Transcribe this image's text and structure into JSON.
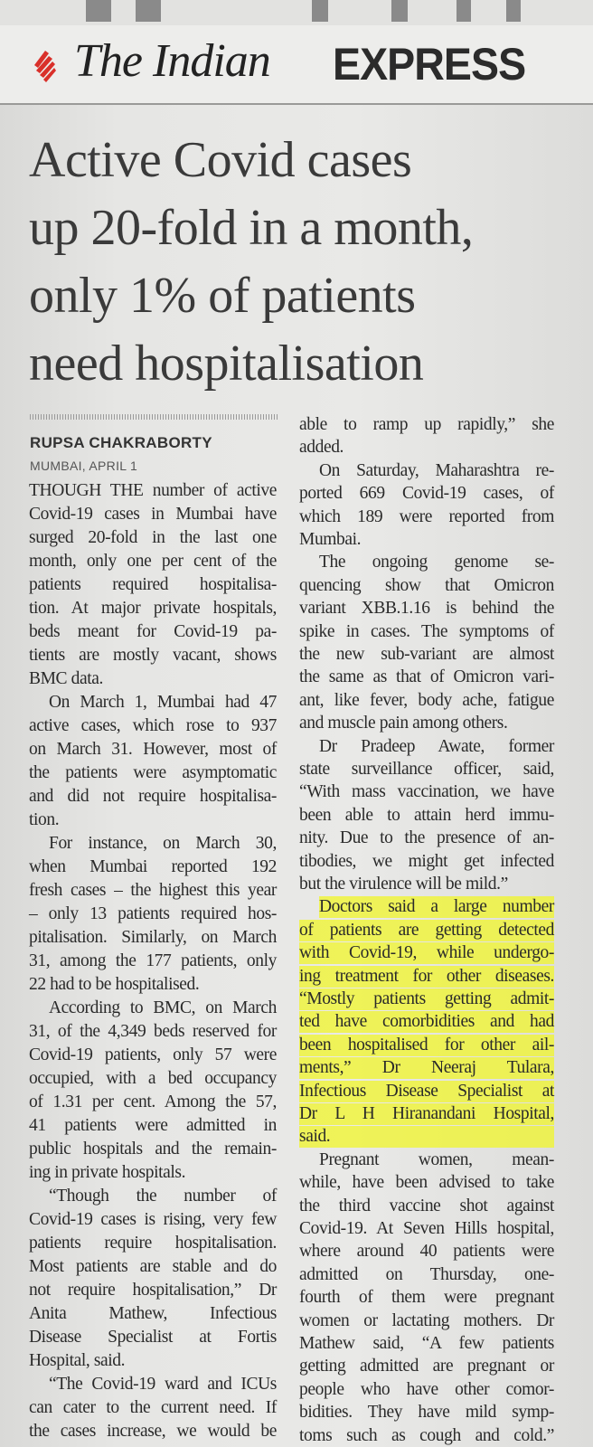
{
  "masthead": {
    "the_indian": "The Indian",
    "express": "EXPRESS",
    "brand_color": "#d9302a"
  },
  "headline": [
    "Active Covid cases",
    "up 20-fold in a month,",
    "only 1% of patients",
    "need hospitalisation"
  ],
  "byline": "RUPSA CHAKRABORTY",
  "dateline": "MUMBAI, APRIL 1",
  "highlight_color": "#f2f52a",
  "columns": [
    {
      "lines": [
        {
          "t": "THOUGH THE number of active"
        },
        {
          "t": "Covid-19 cases in Mumbai have"
        },
        {
          "t": "surged 20-fold in the last one"
        },
        {
          "t": "month, only one per cent of the"
        },
        {
          "t": "patients required hospitalisa-"
        },
        {
          "t": "tion. At major private hospitals,"
        },
        {
          "t": "beds meant for Covid-19 pa-"
        },
        {
          "t": "tients are mostly vacant, shows"
        },
        {
          "t": "BMC data.",
          "last": true
        },
        {
          "t": "On March 1, Mumbai had 47",
          "indent": true
        },
        {
          "t": "active cases, which rose to 937"
        },
        {
          "t": "on March 31. However, most of"
        },
        {
          "t": "the patients were asymptomatic"
        },
        {
          "t": "and did not require hospitalisa-"
        },
        {
          "t": "tion.",
          "last": true
        },
        {
          "t": "For instance, on March 30,",
          "indent": true
        },
        {
          "t": "when Mumbai reported 192"
        },
        {
          "t": "fresh cases – the highest this year"
        },
        {
          "t": "– only 13 patients required hos-"
        },
        {
          "t": "pitalisation. Similarly, on March"
        },
        {
          "t": "31, among the 177 patients, only"
        },
        {
          "t": "22 had to be hospitalised.",
          "last": true
        },
        {
          "t": "According to BMC, on March",
          "indent": true
        },
        {
          "t": "31, of the 4,349 beds reserved for"
        },
        {
          "t": "Covid-19 patients, only 57 were"
        },
        {
          "t": "occupied, with a bed occupancy"
        },
        {
          "t": "of 1.31 per cent. Among the 57,"
        },
        {
          "t": "41 patients were admitted in"
        },
        {
          "t": "public hospitals and the remain-"
        },
        {
          "t": "ing in private hospitals.",
          "last": true
        },
        {
          "t": "“Though the number of",
          "indent": true
        },
        {
          "t": "Covid-19 cases is rising, very few"
        },
        {
          "t": "patients require hospitalisation."
        },
        {
          "t": "Most patients are stable and do"
        },
        {
          "t": "not require hospitalisation,” Dr"
        },
        {
          "t": "Anita Mathew, Infectious"
        },
        {
          "t": "Disease Specialist at Fortis"
        },
        {
          "t": "Hospital, said.",
          "last": true
        },
        {
          "t": "“The Covid-19 ward and ICUs",
          "indent": true
        },
        {
          "t": "can cater to the current need. If"
        },
        {
          "t": "the cases increase, we would be"
        }
      ]
    },
    {
      "lines": [
        {
          "t": "able to ramp up rapidly,” she"
        },
        {
          "t": "added.",
          "last": true
        },
        {
          "t": "On Saturday, Maharashtra re-",
          "indent": true
        },
        {
          "t": "ported 669 Covid-19 cases, of"
        },
        {
          "t": "which 189 were reported from"
        },
        {
          "t": "Mumbai.",
          "last": true
        },
        {
          "t": "The ongoing genome se-",
          "indent": true
        },
        {
          "t": "quencing show that Omicron"
        },
        {
          "t": "variant XBB.1.16 is behind the"
        },
        {
          "t": "spike in cases. The symptoms of"
        },
        {
          "t": "the new sub-variant are almost"
        },
        {
          "t": "the same as that of Omicron vari-"
        },
        {
          "t": "ant, like fever, body ache, fatigue"
        },
        {
          "t": "and muscle pain among others.",
          "last": true
        },
        {
          "t": "Dr Pradeep Awate, former",
          "indent": true
        },
        {
          "t": "state surveillance officer, said,"
        },
        {
          "t": "“With mass vaccination, we have"
        },
        {
          "t": "been able to attain herd immu-"
        },
        {
          "t": "nity. Due to the presence of an-"
        },
        {
          "t": "tibodies, we might get infected"
        },
        {
          "t": "but the virulence will be mild.”",
          "last": true
        },
        {
          "t": "Doctors said a large number",
          "indent": true,
          "hl": true
        },
        {
          "t": "of patients are getting detected",
          "hl": true
        },
        {
          "t": "with Covid-19, while undergo-",
          "hl": true
        },
        {
          "t": "ing treatment for other diseases.",
          "hl": true
        },
        {
          "t": "“Mostly patients getting admit-",
          "hl": true
        },
        {
          "t": "ted have comorbidities and had",
          "hl": true
        },
        {
          "t": "been hospitalised for other ail-",
          "hl": true
        },
        {
          "t": "ments,” Dr Neeraj Tulara,",
          "hl": true
        },
        {
          "t": "Infectious Disease Specialist at",
          "hl": true
        },
        {
          "t": "Dr L H Hiranandani Hospital,",
          "hl": true
        },
        {
          "t": "said.",
          "last": true,
          "hl": true
        },
        {
          "t": "Pregnant women, mean-",
          "indent": true
        },
        {
          "t": "while, have been advised to take"
        },
        {
          "t": "the third vaccine shot against"
        },
        {
          "t": "Covid-19. At Seven Hills hospital,"
        },
        {
          "t": "where around 40 patients were"
        },
        {
          "t": "admitted on Thursday, one-"
        },
        {
          "t": "fourth of them were pregnant"
        },
        {
          "t": "women or lactating mothers. Dr"
        },
        {
          "t": "Mathew said, “A few patients"
        },
        {
          "t": "getting admitted are pregnant or"
        },
        {
          "t": "people who have other comor-"
        },
        {
          "t": "bidities. They have mild symp-"
        },
        {
          "t": "toms such as cough and cold.”"
        }
      ]
    }
  ]
}
